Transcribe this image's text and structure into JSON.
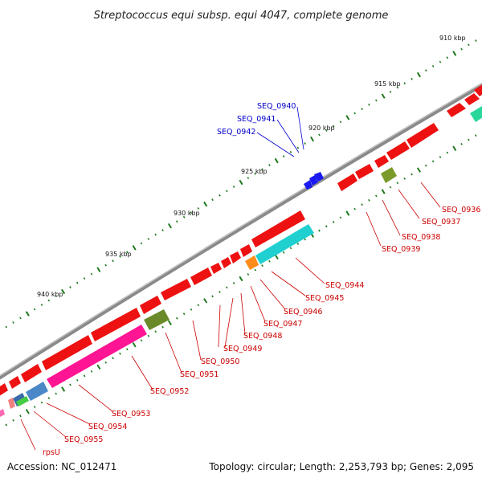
{
  "title": "Streptococcus equi subsp. equi 4047, complete genome",
  "accession": "Accession: NC_012471",
  "topology": "Topology: circular; Length: 2,253,793 bp; Genes: 2,095",
  "colors": {
    "backbone": "#8a8a8a",
    "tick": "#1f7a1f",
    "red_gene": "#ee1111",
    "label_red": "#cc0000",
    "label_blue": "#0000cc"
  },
  "kbp_labels": [
    "910 kbp",
    "915 kbp",
    "920 kbp",
    "925 kbp",
    "930 kbp",
    "935 kbp",
    "940 kbp"
  ],
  "genes_left": [
    "SEQ_0940",
    "SEQ_0941",
    "SEQ_0942"
  ],
  "genes_right": [
    "SEQ_0936",
    "SEQ_0937",
    "SEQ_0938",
    "SEQ_0939",
    "SEQ_0944",
    "SEQ_0945",
    "SEQ_0946",
    "SEQ_0947",
    "SEQ_0948",
    "SEQ_0949",
    "SEQ_0950",
    "SEQ_0951",
    "SEQ_0952",
    "SEQ_0953",
    "SEQ_0954",
    "SEQ_0955",
    "rpsU"
  ]
}
